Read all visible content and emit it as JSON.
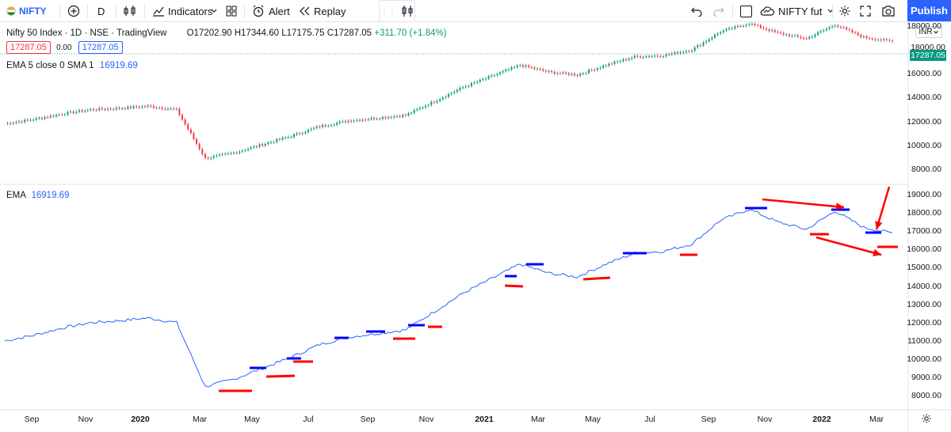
{
  "toolbar": {
    "symbol": "NIFTY",
    "interval": "D",
    "indicators_label": "Indicators",
    "alert_label": "Alert",
    "replay_label": "Replay",
    "compare_symbol": "NIFTY fut",
    "publish_label": "Publish"
  },
  "header": {
    "title": "Nifty 50 Index · 1D · NSE · TradingView",
    "open": "O17202.90",
    "high": "H17344.60",
    "low": "L17175.75",
    "close": "C17287.05",
    "change": "+311.70 (+1.84%)",
    "bid": "17287.05",
    "spread": "0.00",
    "ask": "17287.05",
    "ema_line": "EMA 5 close 0 SMA 1",
    "ema_value": "16919.69",
    "currency": "INR"
  },
  "lower_pane": {
    "name": "EMA",
    "value": "16919.69"
  },
  "price_axis_top": [
    "18000.00",
    "16000.00",
    "14000.00",
    "12000.00",
    "10000.00",
    "8000.00"
  ],
  "price_tags_top": [
    "18000.00",
    "17287.05"
  ],
  "price_axis_bottom": [
    "19000.00",
    "18000.00",
    "17000.00",
    "16000.00",
    "15000.00",
    "14000.00",
    "13000.00",
    "12000.00",
    "11000.00",
    "10000.00",
    "9000.00",
    "8000.00"
  ],
  "time_axis": [
    "Sep",
    "Nov",
    "2020",
    "Mar",
    "May",
    "Jul",
    "Sep",
    "Nov",
    "2021",
    "Mar",
    "May",
    "Jul",
    "Sep",
    "Nov",
    "2022",
    "Mar"
  ],
  "colors": {
    "up": "#089981",
    "down": "#f23645",
    "line": "#2962ff",
    "accent": "#2962ff",
    "marker_blue": "#0000ff",
    "marker_red": "#ff0000"
  },
  "chart_data": {
    "type": "line",
    "title": "",
    "series": [
      {
        "name": "EMA",
        "x": [
          "2019-08",
          "2019-09",
          "2019-10",
          "2019-11",
          "2019-12",
          "2020-01",
          "2020-02",
          "2020-03",
          "2020-04",
          "2020-05",
          "2020-06",
          "2020-07",
          "2020-08",
          "2020-09",
          "2020-10",
          "2020-11",
          "2020-12",
          "2021-01",
          "2021-02",
          "2021-03",
          "2021-04",
          "2021-05",
          "2021-06",
          "2021-07",
          "2021-08",
          "2021-09",
          "2021-10",
          "2021-11",
          "2021-12",
          "2022-01",
          "2022-02",
          "2022-03"
        ],
        "values": [
          11000,
          11300,
          11700,
          12000,
          12100,
          12250,
          12000,
          8500,
          8900,
          9500,
          10100,
          10800,
          11200,
          11400,
          11600,
          12600,
          13600,
          14400,
          15200,
          14700,
          14500,
          15200,
          15800,
          15900,
          16300,
          17600,
          18200,
          17500,
          17100,
          18100,
          17200,
          16900
        ]
      }
    ],
    "ylim": [
      8000,
      19000
    ],
    "grid": false
  }
}
